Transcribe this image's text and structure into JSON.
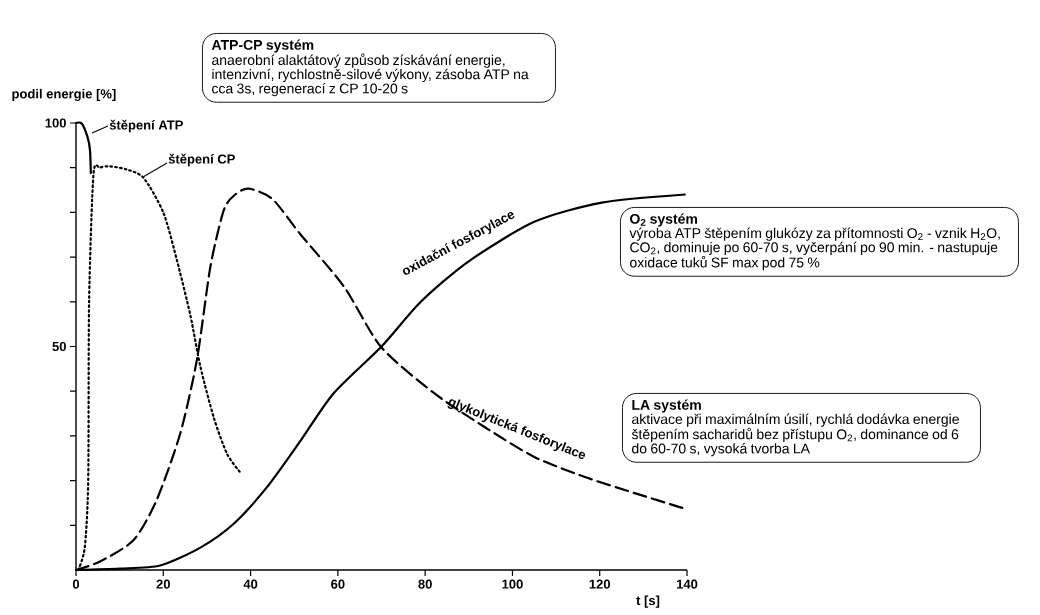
{
  "chart_data": {
    "type": "line",
    "ylabel": "podil energie [%]",
    "xlabel": "t [s]",
    "xlim": [
      0,
      140
    ],
    "ylim": [
      0,
      100
    ],
    "xticks": [
      0,
      20,
      40,
      60,
      80,
      100,
      120,
      140
    ],
    "yticks": [
      {
        "value": 10,
        "label": null
      },
      {
        "value": 20,
        "label": null
      },
      {
        "value": 30,
        "label": null
      },
      {
        "value": 40,
        "label": null
      },
      50,
      {
        "value": 60,
        "label": null
      },
      {
        "value": 70,
        "label": null
      },
      {
        "value": 80,
        "label": null
      },
      {
        "value": 90,
        "label": null
      },
      100
    ],
    "series": [
      {
        "name": "štěpení ATP",
        "color": "#000000",
        "line_style": "solid",
        "x": [
          0,
          1.3,
          2.6,
          3.2,
          3.4
        ],
        "values": [
          100,
          99.9,
          97,
          94,
          88.8
        ]
      },
      {
        "name": "štěpení CP",
        "color": "#000000",
        "line_style": "dotted",
        "x": [
          0.5,
          2,
          2.8,
          3,
          4,
          5.5,
          7.8,
          11.6,
          15.5,
          20,
          23.1,
          26.2,
          28.5,
          31.6,
          34.6,
          37.5
        ],
        "values": [
          0,
          5,
          20,
          60,
          88.5,
          90,
          90.3,
          89.6,
          87.7,
          80,
          69.4,
          57,
          45.5,
          34,
          26,
          22
        ]
      },
      {
        "name": "glykolytická fosforylace",
        "color": "#000000",
        "line_style": "dashed",
        "x": [
          0,
          5.5,
          13.2,
          18.5,
          23.9,
          27.7,
          30.8,
          33.9,
          36.5,
          39.6,
          45,
          51.5,
          61.4,
          69.9,
          82,
          93.6,
          105,
          116.6,
          128,
          138.9
        ],
        "values": [
          0,
          1.9,
          6.7,
          15.7,
          30.6,
          47,
          67.9,
          80.6,
          84,
          85.3,
          83,
          75,
          63.4,
          49.9,
          39.6,
          32,
          25.3,
          20.8,
          17.2,
          13.9
        ]
      },
      {
        "name": "oxidační fosforylace",
        "color": "#000000",
        "line_style": "solid",
        "x": [
          0,
          10,
          19.3,
          28.5,
          36.2,
          43.8,
          51.5,
          59,
          70,
          79,
          89.9,
          105,
          120.5,
          139.5
        ],
        "values": [
          0,
          0.3,
          1,
          5,
          10.4,
          18.6,
          29,
          39.5,
          50,
          60,
          69,
          77.9,
          82.2,
          84
        ]
      }
    ],
    "annotations": [
      "ATP-CP systém",
      "anaerobní alaktátový způsob získávání energie, intenzivní, rychlostně-silové výkony, zásoba ATP na cca 3s, regenerací z CP 10-20 s",
      "O$_{2}$ systém",
      "výroba ATP štěpením glukózy za přítomnosti O$_{2}$ - vznik H$_{2}$O, CO$_{2}$, dominuje po 60-70 s, vyčerpání po 90 min. - nastupuje oxidace tuků SF max pod 75 %",
      "LA systém",
      "aktivace při maximálním úsilí, rychlá dodávka energie štěpením sacharidů bez přístupu O$_{2}$, dominance od 6 do 60-70 s, vysoká tvorba LA"
    ]
  }
}
